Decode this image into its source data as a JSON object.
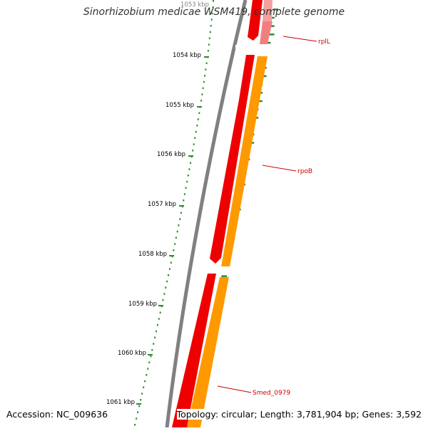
{
  "title": "Sinorhizobium medicae WSM419, complete genome",
  "ruler": {
    "labels": [
      "1053 kbp",
      "1054 kbp",
      "1055 kbp",
      "1056 kbp",
      "1057 kbp",
      "1058 kbp",
      "1059 kbp",
      "1060 kbp",
      "1061 kbp"
    ]
  },
  "genes": [
    {
      "name": "rplL",
      "color": "#f08080"
    },
    {
      "name": "rpoB",
      "color": "#ff9900"
    },
    {
      "name": "Smed_0979",
      "color": "#ff9900"
    }
  ],
  "colors": {
    "cds_forward": "#ee0000",
    "cds_reverse": "#ff9900",
    "rna_light": "#f08080",
    "backbone": "#808080",
    "gc_skew": "#2e8b2e",
    "gene_label": "#cc0000"
  },
  "footer": {
    "accession": "Accession: NC_009636",
    "summary": "Topology: circular; Length: 3,781,904 bp; Genes: 3,592"
  }
}
